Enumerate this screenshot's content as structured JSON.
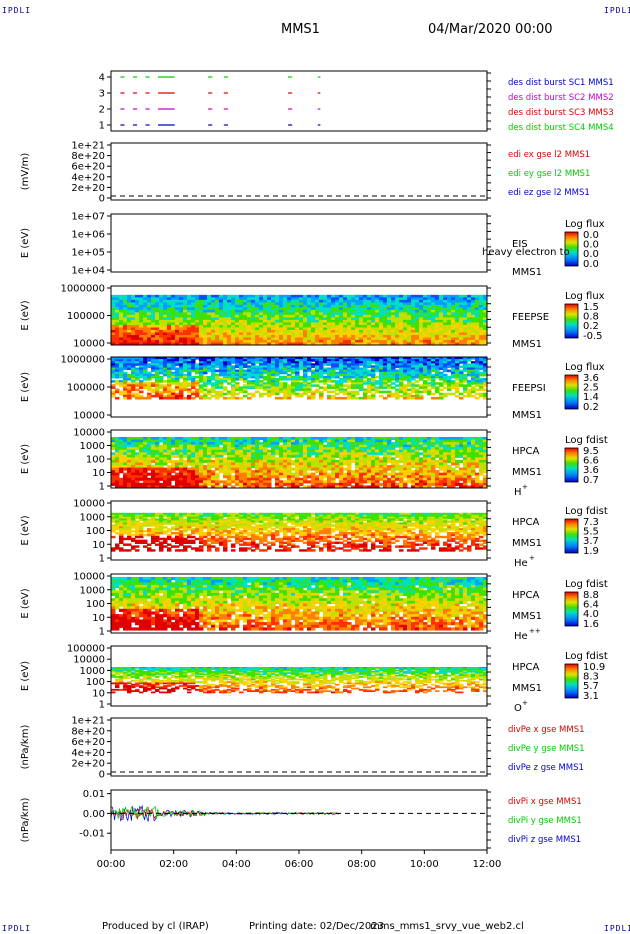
{
  "corner_label": "IPDLI",
  "header": {
    "mission": "MMS1",
    "date_time": "04/Mar/2020 00:00"
  },
  "footer": {
    "produced_by": "Produced by cl (IRAP)",
    "printing_date": "Printing date: 02/Dec/2023",
    "script_name": "mms_mms1_srvy_vue_web2.cl"
  },
  "colors": {
    "mms1": "#0000cc",
    "mms2": "#cc00cc",
    "mms3": "#dd0000",
    "mms4": "#00cc00",
    "x": "#dd0000",
    "y": "#00cc00",
    "z": "#0000cc"
  },
  "chart_data": {
    "type": "multi-panel time series",
    "x_ticks": [
      "00:00",
      "02:00",
      "04:00",
      "06:00",
      "08:00",
      "10:00",
      "12:00"
    ],
    "x_range_hours": [
      0,
      12
    ],
    "panels": [
      {
        "id": "burst",
        "type": "scatter",
        "ylabel": "",
        "yticks": [
          "4",
          "3",
          "2",
          "1"
        ],
        "legend": [
          {
            "text": "des dist burst SC1 MMS1",
            "color": "#0000cc"
          },
          {
            "text": "des dist burst SC2 MMS2",
            "color": "#cc00cc"
          },
          {
            "text": "des dist burst SC3 MMS3",
            "color": "#dd0000"
          },
          {
            "text": "des dist burst SC4 MMS4",
            "color": "#00cc00"
          }
        ],
        "intervals_hours": [
          [
            0.3,
            0.4
          ],
          [
            0.7,
            0.8
          ],
          [
            1.1,
            1.2
          ],
          [
            1.5,
            2.0
          ],
          [
            3.1,
            3.2
          ],
          [
            3.6,
            3.7
          ],
          [
            5.65,
            5.75
          ],
          [
            6.6,
            6.65
          ]
        ]
      },
      {
        "id": "edi",
        "type": "line",
        "ylabel": "(mV/m)",
        "yticks": [
          "1e+21",
          "8e+20",
          "6e+20",
          "4e+20",
          "2e+20",
          "0"
        ],
        "legend": [
          {
            "text": "edi ex gse l2 MMS1",
            "color": "#dd0000"
          },
          {
            "text": "edi ey gse l2 MMS1",
            "color": "#00cc00"
          },
          {
            "text": "edi ez gse l2 MMS1",
            "color": "#0000cc"
          }
        ]
      },
      {
        "id": "eis",
        "type": "heatmap",
        "ylabel": "E (eV)",
        "yticks": [
          "1e+07",
          "1e+06",
          "1e+05",
          "1e+04"
        ],
        "inst": [
          "EIS",
          "MMS1"
        ],
        "overlay_text": "heavy electron to",
        "cbar_title": "Log flux",
        "cbar_ticks": [
          "0.0",
          "0.0",
          "0.0",
          "0.0"
        ]
      },
      {
        "id": "feepse",
        "type": "heatmap",
        "ylabel": "E (eV)",
        "yticks": [
          "1000000",
          "100000",
          "10000"
        ],
        "inst": [
          "FEEPSE",
          "MMS1"
        ],
        "cbar_title": "Log flux",
        "cbar_ticks": [
          "1.5",
          "0.8",
          "0.2",
          "-0.5"
        ]
      },
      {
        "id": "feepsi",
        "type": "heatmap",
        "ylabel": "E (eV)",
        "yticks": [
          "1000000",
          "100000",
          "10000"
        ],
        "inst": [
          "FEEPSI",
          "MMS1"
        ],
        "cbar_title": "Log flux",
        "cbar_ticks": [
          "3.6",
          "2.5",
          "1.4",
          "0.2"
        ]
      },
      {
        "id": "hpca_h",
        "type": "heatmap",
        "ylabel": "E (eV)",
        "yticks": [
          "10000",
          "1000",
          "100",
          "10",
          "1"
        ],
        "inst": [
          "HPCA",
          "MMS1"
        ],
        "species": "H",
        "species_sup": "+",
        "cbar_title": "Log fdist",
        "cbar_ticks": [
          "9.5",
          "6.6",
          "3.6",
          "0.7"
        ]
      },
      {
        "id": "hpca_he",
        "type": "heatmap",
        "ylabel": "E (eV)",
        "yticks": [
          "10000",
          "1000",
          "100",
          "10",
          "1"
        ],
        "inst": [
          "HPCA",
          "MMS1"
        ],
        "species": "He",
        "species_sup": "+",
        "cbar_title": "Log fdist",
        "cbar_ticks": [
          "7.3",
          "5.5",
          "3.7",
          "1.9"
        ]
      },
      {
        "id": "hpca_he2",
        "type": "heatmap",
        "ylabel": "E (eV)",
        "yticks": [
          "10000",
          "1000",
          "100",
          "10",
          "1"
        ],
        "inst": [
          "HPCA",
          "MMS1"
        ],
        "species": "He",
        "species_sup": "++",
        "cbar_title": "Log fdist",
        "cbar_ticks": [
          "8.8",
          "6.4",
          "4.0",
          "1.6"
        ]
      },
      {
        "id": "hpca_o",
        "type": "heatmap",
        "ylabel": "E (eV)",
        "yticks": [
          "100000",
          "10000",
          "1000",
          "100",
          "10",
          "1"
        ],
        "inst": [
          "HPCA",
          "MMS1"
        ],
        "species": "O",
        "species_sup": "+",
        "cbar_title": "Log fdist",
        "cbar_ticks": [
          "10.9",
          "8.3",
          "5.7",
          "3.1"
        ]
      },
      {
        "id": "divpe",
        "type": "line",
        "ylabel": "(nPa/km)",
        "yticks": [
          "1e+21",
          "8e+20",
          "6e+20",
          "4e+20",
          "2e+20",
          "0"
        ],
        "legend": [
          {
            "text": "divPe x gse MMS1",
            "color": "#dd0000"
          },
          {
            "text": "divPe y gse MMS1",
            "color": "#00cc00"
          },
          {
            "text": "divPe z gse MMS1",
            "color": "#0000cc"
          }
        ]
      },
      {
        "id": "divpi",
        "type": "line",
        "ylabel": "(nPa/km)",
        "yticks": [
          "0.01",
          "0.00",
          "-0.01"
        ],
        "legend": [
          {
            "text": "divPi x gse MMS1",
            "color": "#dd0000"
          },
          {
            "text": "divPi y gse MMS1",
            "color": "#00cc00"
          },
          {
            "text": "divPi z gse MMS1",
            "color": "#0000cc"
          }
        ],
        "data_extent_hours": [
          0,
          7.3
        ]
      }
    ]
  }
}
